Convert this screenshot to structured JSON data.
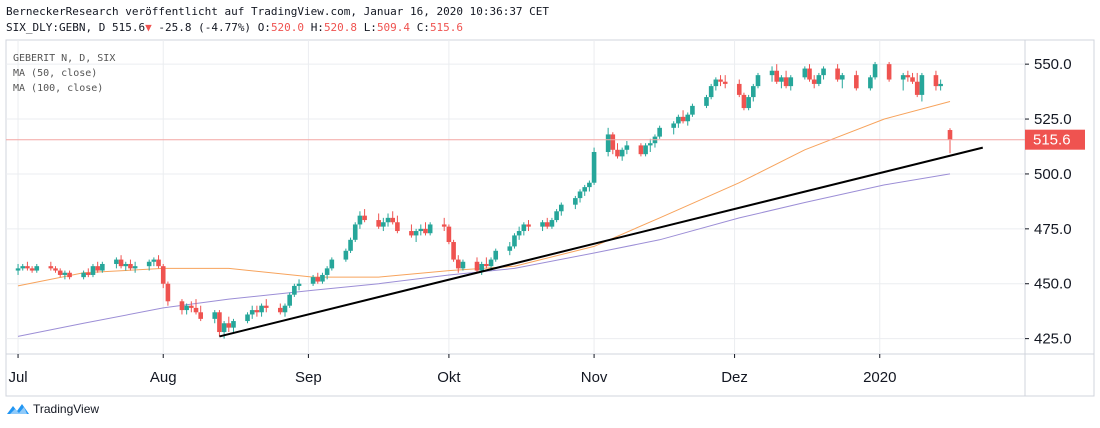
{
  "header": {
    "line1": "BerneckerResearch veröffentlicht auf TradingView.com, Januar 16, 2020 10:36:37 CET",
    "symbol": "SIX_DLY:GEBN, D",
    "last": "515.6",
    "change_arrow": "▼",
    "change": "-25.8 (-4.77%)",
    "o_label": "O:",
    "o_value": "520.0",
    "h_label": "H:",
    "h_value": "520.8",
    "l_label": "L:",
    "l_value": "509.4",
    "c_label": "C:",
    "c_value": "515.6"
  },
  "legend": [
    "GEBERIT N, D, SIX",
    "MA (50, close)",
    "MA (100, close)"
  ],
  "footer": {
    "brand": "TradingView"
  },
  "colors": {
    "up": "#26a69a",
    "down": "#ef5350",
    "ma50": "#f7a35c",
    "ma100": "#9c8ed6",
    "trendline": "#000000",
    "grid": "#ebedf0",
    "last_line": "#f4a6a4"
  },
  "chart_data": {
    "type": "candlestick",
    "symbol": "GEBERIT N",
    "interval": "D",
    "exchange": "SIX",
    "y_ticks": [
      425.0,
      450.0,
      475.0,
      500.0,
      525.0,
      550.0
    ],
    "ylim": [
      418,
      561
    ],
    "x_ticks": [
      {
        "label": "Jul",
        "date": "2019-07-01"
      },
      {
        "label": "Aug",
        "date": "2019-08-01"
      },
      {
        "label": "Sep",
        "date": "2019-09-01"
      },
      {
        "label": "Okt",
        "date": "2019-10-01"
      },
      {
        "label": "Nov",
        "date": "2019-11-01"
      },
      {
        "label": "Dez",
        "date": "2019-12-01"
      },
      {
        "label": "2020",
        "date": "2020-01-01"
      }
    ],
    "last_price": 515.6,
    "candles": [
      [
        "2019-07-01",
        456,
        459,
        454,
        457
      ],
      [
        "2019-07-02",
        457,
        459,
        456,
        458
      ],
      [
        "2019-07-03",
        458,
        460,
        456,
        457
      ],
      [
        "2019-07-04",
        457,
        458,
        455,
        456
      ],
      [
        "2019-07-05",
        456,
        459,
        455,
        458
      ],
      [
        "2019-07-08",
        458,
        460,
        456,
        457
      ],
      [
        "2019-07-09",
        457,
        458,
        455,
        456
      ],
      [
        "2019-07-10",
        456,
        457,
        453,
        454
      ],
      [
        "2019-07-11",
        454,
        456,
        452,
        455
      ],
      [
        "2019-07-12",
        455,
        456,
        452,
        453
      ],
      [
        "2019-07-15",
        453,
        456,
        452,
        455
      ],
      [
        "2019-07-16",
        455,
        457,
        453,
        454
      ],
      [
        "2019-07-17",
        454,
        459,
        453,
        458
      ],
      [
        "2019-07-18",
        458,
        460,
        455,
        456
      ],
      [
        "2019-07-19",
        456,
        460,
        455,
        459
      ],
      [
        "2019-07-22",
        459,
        462,
        457,
        461
      ],
      [
        "2019-07-23",
        461,
        463,
        457,
        458
      ],
      [
        "2019-07-24",
        458,
        460,
        456,
        459
      ],
      [
        "2019-07-25",
        459,
        461,
        456,
        457
      ],
      [
        "2019-07-26",
        457,
        460,
        455,
        458
      ],
      [
        "2019-07-29",
        458,
        461,
        456,
        460
      ],
      [
        "2019-07-30",
        460,
        462,
        458,
        461
      ],
      [
        "2019-07-31",
        461,
        463,
        457,
        458
      ],
      [
        "2019-08-01",
        458,
        459,
        448,
        450
      ],
      [
        "2019-08-02",
        450,
        451,
        440,
        442
      ],
      [
        "2019-08-05",
        442,
        443,
        436,
        438
      ],
      [
        "2019-08-06",
        438,
        441,
        436,
        440
      ],
      [
        "2019-08-07",
        440,
        442,
        437,
        439
      ],
      [
        "2019-08-08",
        439,
        443,
        436,
        437
      ],
      [
        "2019-08-09",
        437,
        440,
        433,
        434
      ],
      [
        "2019-08-12",
        434,
        438,
        432,
        437
      ],
      [
        "2019-08-13",
        437,
        438,
        426,
        428
      ],
      [
        "2019-08-14",
        428,
        433,
        425,
        432
      ],
      [
        "2019-08-15",
        432,
        435,
        428,
        430
      ],
      [
        "2019-08-16",
        430,
        434,
        428,
        433
      ],
      [
        "2019-08-19",
        433,
        437,
        432,
        436
      ],
      [
        "2019-08-20",
        436,
        440,
        434,
        438
      ],
      [
        "2019-08-21",
        438,
        440,
        435,
        437
      ],
      [
        "2019-08-22",
        437,
        441,
        435,
        440
      ],
      [
        "2019-08-23",
        440,
        443,
        437,
        439
      ],
      [
        "2019-08-26",
        439,
        441,
        436,
        437
      ],
      [
        "2019-08-27",
        437,
        441,
        435,
        440
      ],
      [
        "2019-08-28",
        440,
        446,
        439,
        445
      ],
      [
        "2019-08-29",
        445,
        450,
        444,
        449
      ],
      [
        "2019-08-30",
        449,
        452,
        447,
        450
      ],
      [
        "2019-09-02",
        450,
        454,
        449,
        453
      ],
      [
        "2019-09-03",
        453,
        455,
        450,
        451
      ],
      [
        "2019-09-04",
        451,
        455,
        450,
        454
      ],
      [
        "2019-09-05",
        454,
        458,
        452,
        457
      ],
      [
        "2019-09-06",
        457,
        462,
        456,
        461
      ],
      [
        "2019-09-09",
        461,
        466,
        460,
        465
      ],
      [
        "2019-09-10",
        465,
        471,
        464,
        470
      ],
      [
        "2019-09-11",
        470,
        478,
        469,
        477
      ],
      [
        "2019-09-12",
        477,
        483,
        475,
        481
      ],
      [
        "2019-09-13",
        481,
        484,
        478,
        479
      ],
      [
        "2019-09-16",
        479,
        482,
        475,
        476
      ],
      [
        "2019-09-17",
        476,
        480,
        474,
        478
      ],
      [
        "2019-09-18",
        478,
        482,
        476,
        480
      ],
      [
        "2019-09-19",
        480,
        483,
        477,
        478
      ],
      [
        "2019-09-20",
        478,
        481,
        473,
        474
      ],
      [
        "2019-09-23",
        474,
        477,
        471,
        472
      ],
      [
        "2019-09-24",
        472,
        475,
        469,
        474
      ],
      [
        "2019-09-25",
        474,
        477,
        472,
        475
      ],
      [
        "2019-09-26",
        475,
        478,
        472,
        473
      ],
      [
        "2019-09-27",
        473,
        478,
        472,
        477
      ],
      [
        "2019-09-30",
        477,
        480,
        474,
        476
      ],
      [
        "2019-10-01",
        476,
        477,
        468,
        469
      ],
      [
        "2019-10-02",
        469,
        470,
        460,
        461
      ],
      [
        "2019-10-03",
        461,
        463,
        455,
        457
      ],
      [
        "2019-10-04",
        457,
        461,
        456,
        460
      ],
      [
        "2019-10-07",
        460,
        462,
        455,
        456
      ],
      [
        "2019-10-08",
        456,
        460,
        454,
        459
      ],
      [
        "2019-10-09",
        459,
        462,
        457,
        458
      ],
      [
        "2019-10-10",
        458,
        462,
        456,
        461
      ],
      [
        "2019-10-11",
        461,
        466,
        460,
        465
      ],
      [
        "2019-10-14",
        465,
        469,
        463,
        467
      ],
      [
        "2019-10-15",
        467,
        473,
        466,
        472
      ],
      [
        "2019-10-16",
        472,
        476,
        470,
        474
      ],
      [
        "2019-10-17",
        474,
        478,
        472,
        477
      ],
      [
        "2019-10-18",
        477,
        479,
        474,
        476
      ],
      [
        "2019-10-21",
        476,
        479,
        474,
        478
      ],
      [
        "2019-10-22",
        478,
        480,
        475,
        476
      ],
      [
        "2019-10-23",
        476,
        480,
        475,
        479
      ],
      [
        "2019-10-24",
        479,
        484,
        478,
        483
      ],
      [
        "2019-10-25",
        483,
        487,
        481,
        486
      ],
      [
        "2019-10-28",
        486,
        490,
        484,
        489
      ],
      [
        "2019-10-29",
        489,
        493,
        487,
        492
      ],
      [
        "2019-10-30",
        492,
        495,
        490,
        494
      ],
      [
        "2019-10-31",
        494,
        497,
        492,
        496
      ],
      [
        "2019-11-01",
        496,
        512,
        495,
        510
      ],
      [
        "2019-11-04",
        510,
        521,
        508,
        518
      ],
      [
        "2019-11-05",
        518,
        519,
        509,
        511
      ],
      [
        "2019-11-06",
        511,
        514,
        507,
        508
      ],
      [
        "2019-11-07",
        508,
        512,
        506,
        511
      ],
      [
        "2019-11-08",
        511,
        515,
        509,
        513
      ],
      [
        "2019-11-11",
        513,
        514,
        508,
        509
      ],
      [
        "2019-11-12",
        509,
        514,
        508,
        513
      ],
      [
        "2019-11-13",
        513,
        516,
        510,
        514
      ],
      [
        "2019-11-14",
        514,
        518,
        512,
        517
      ],
      [
        "2019-11-15",
        517,
        522,
        516,
        521
      ],
      [
        "2019-11-18",
        521,
        524,
        518,
        523
      ],
      [
        "2019-11-19",
        523,
        527,
        521,
        526
      ],
      [
        "2019-11-20",
        526,
        529,
        523,
        524
      ],
      [
        "2019-11-21",
        524,
        528,
        522,
        527
      ],
      [
        "2019-11-22",
        527,
        532,
        526,
        531
      ],
      [
        "2019-11-25",
        531,
        536,
        530,
        535
      ],
      [
        "2019-11-26",
        535,
        541,
        534,
        540
      ],
      [
        "2019-11-27",
        540,
        544,
        538,
        543
      ],
      [
        "2019-11-28",
        543,
        545,
        540,
        542
      ],
      [
        "2019-11-29",
        542,
        545,
        539,
        541
      ],
      [
        "2019-12-02",
        541,
        543,
        535,
        536
      ],
      [
        "2019-12-03",
        536,
        537,
        529,
        530
      ],
      [
        "2019-12-04",
        530,
        536,
        529,
        535
      ],
      [
        "2019-12-05",
        535,
        541,
        533,
        540
      ],
      [
        "2019-12-06",
        540,
        546,
        539,
        545
      ],
      [
        "2019-12-09",
        545,
        549,
        542,
        547
      ],
      [
        "2019-12-10",
        547,
        550,
        541,
        542
      ],
      [
        "2019-12-11",
        542,
        545,
        539,
        544
      ],
      [
        "2019-12-12",
        544,
        547,
        539,
        540
      ],
      [
        "2019-12-13",
        540,
        545,
        538,
        544
      ],
      [
        "2019-12-16",
        544,
        549,
        543,
        548
      ],
      [
        "2019-12-17",
        548,
        550,
        542,
        543
      ],
      [
        "2019-12-18",
        543,
        545,
        539,
        541
      ],
      [
        "2019-12-19",
        541,
        546,
        540,
        545
      ],
      [
        "2019-12-20",
        545,
        549,
        543,
        548
      ],
      [
        "2019-12-23",
        548,
        550,
        542,
        543
      ],
      [
        "2019-12-24",
        543,
        546,
        539,
        545
      ],
      [
        "2019-12-27",
        545,
        547,
        538,
        539
      ],
      [
        "2019-12-30",
        539,
        545,
        538,
        544
      ],
      [
        "2019-12-31",
        544,
        551,
        543,
        550
      ],
      [
        "2020-01-03",
        550,
        551,
        542,
        543
      ],
      [
        "2020-01-06",
        543,
        546,
        538,
        545
      ],
      [
        "2020-01-07",
        545,
        547,
        542,
        544
      ],
      [
        "2020-01-08",
        544,
        546,
        541,
        542
      ],
      [
        "2020-01-09",
        542,
        546,
        535,
        536
      ],
      [
        "2020-01-10",
        536,
        546,
        533,
        545
      ],
      [
        "2020-01-13",
        545,
        547,
        538,
        540
      ],
      [
        "2020-01-14",
        540,
        543,
        538,
        541
      ],
      [
        "2020-01-16",
        520.0,
        520.8,
        509.4,
        515.6
      ]
    ],
    "ma50": [
      [
        "2019-07-01",
        449
      ],
      [
        "2019-07-15",
        455
      ],
      [
        "2019-08-01",
        457
      ],
      [
        "2019-08-15",
        457
      ],
      [
        "2019-09-02",
        453
      ],
      [
        "2019-09-16",
        453
      ],
      [
        "2019-10-01",
        456
      ],
      [
        "2019-10-15",
        458
      ],
      [
        "2019-11-01",
        467
      ],
      [
        "2019-11-15",
        480
      ],
      [
        "2019-12-02",
        496
      ],
      [
        "2019-12-16",
        511
      ],
      [
        "2020-01-02",
        525
      ],
      [
        "2020-01-16",
        533
      ]
    ],
    "ma100": [
      [
        "2019-07-01",
        426
      ],
      [
        "2019-07-15",
        432
      ],
      [
        "2019-08-01",
        439
      ],
      [
        "2019-08-15",
        443
      ],
      [
        "2019-09-02",
        447
      ],
      [
        "2019-09-16",
        450
      ],
      [
        "2019-10-01",
        454
      ],
      [
        "2019-10-15",
        457
      ],
      [
        "2019-11-01",
        464
      ],
      [
        "2019-11-15",
        470
      ],
      [
        "2019-12-02",
        480
      ],
      [
        "2019-12-16",
        487
      ],
      [
        "2020-01-02",
        495
      ],
      [
        "2020-01-16",
        500
      ]
    ],
    "trendline": [
      [
        "2019-08-13",
        426
      ],
      [
        "2020-01-23",
        512
      ]
    ]
  }
}
